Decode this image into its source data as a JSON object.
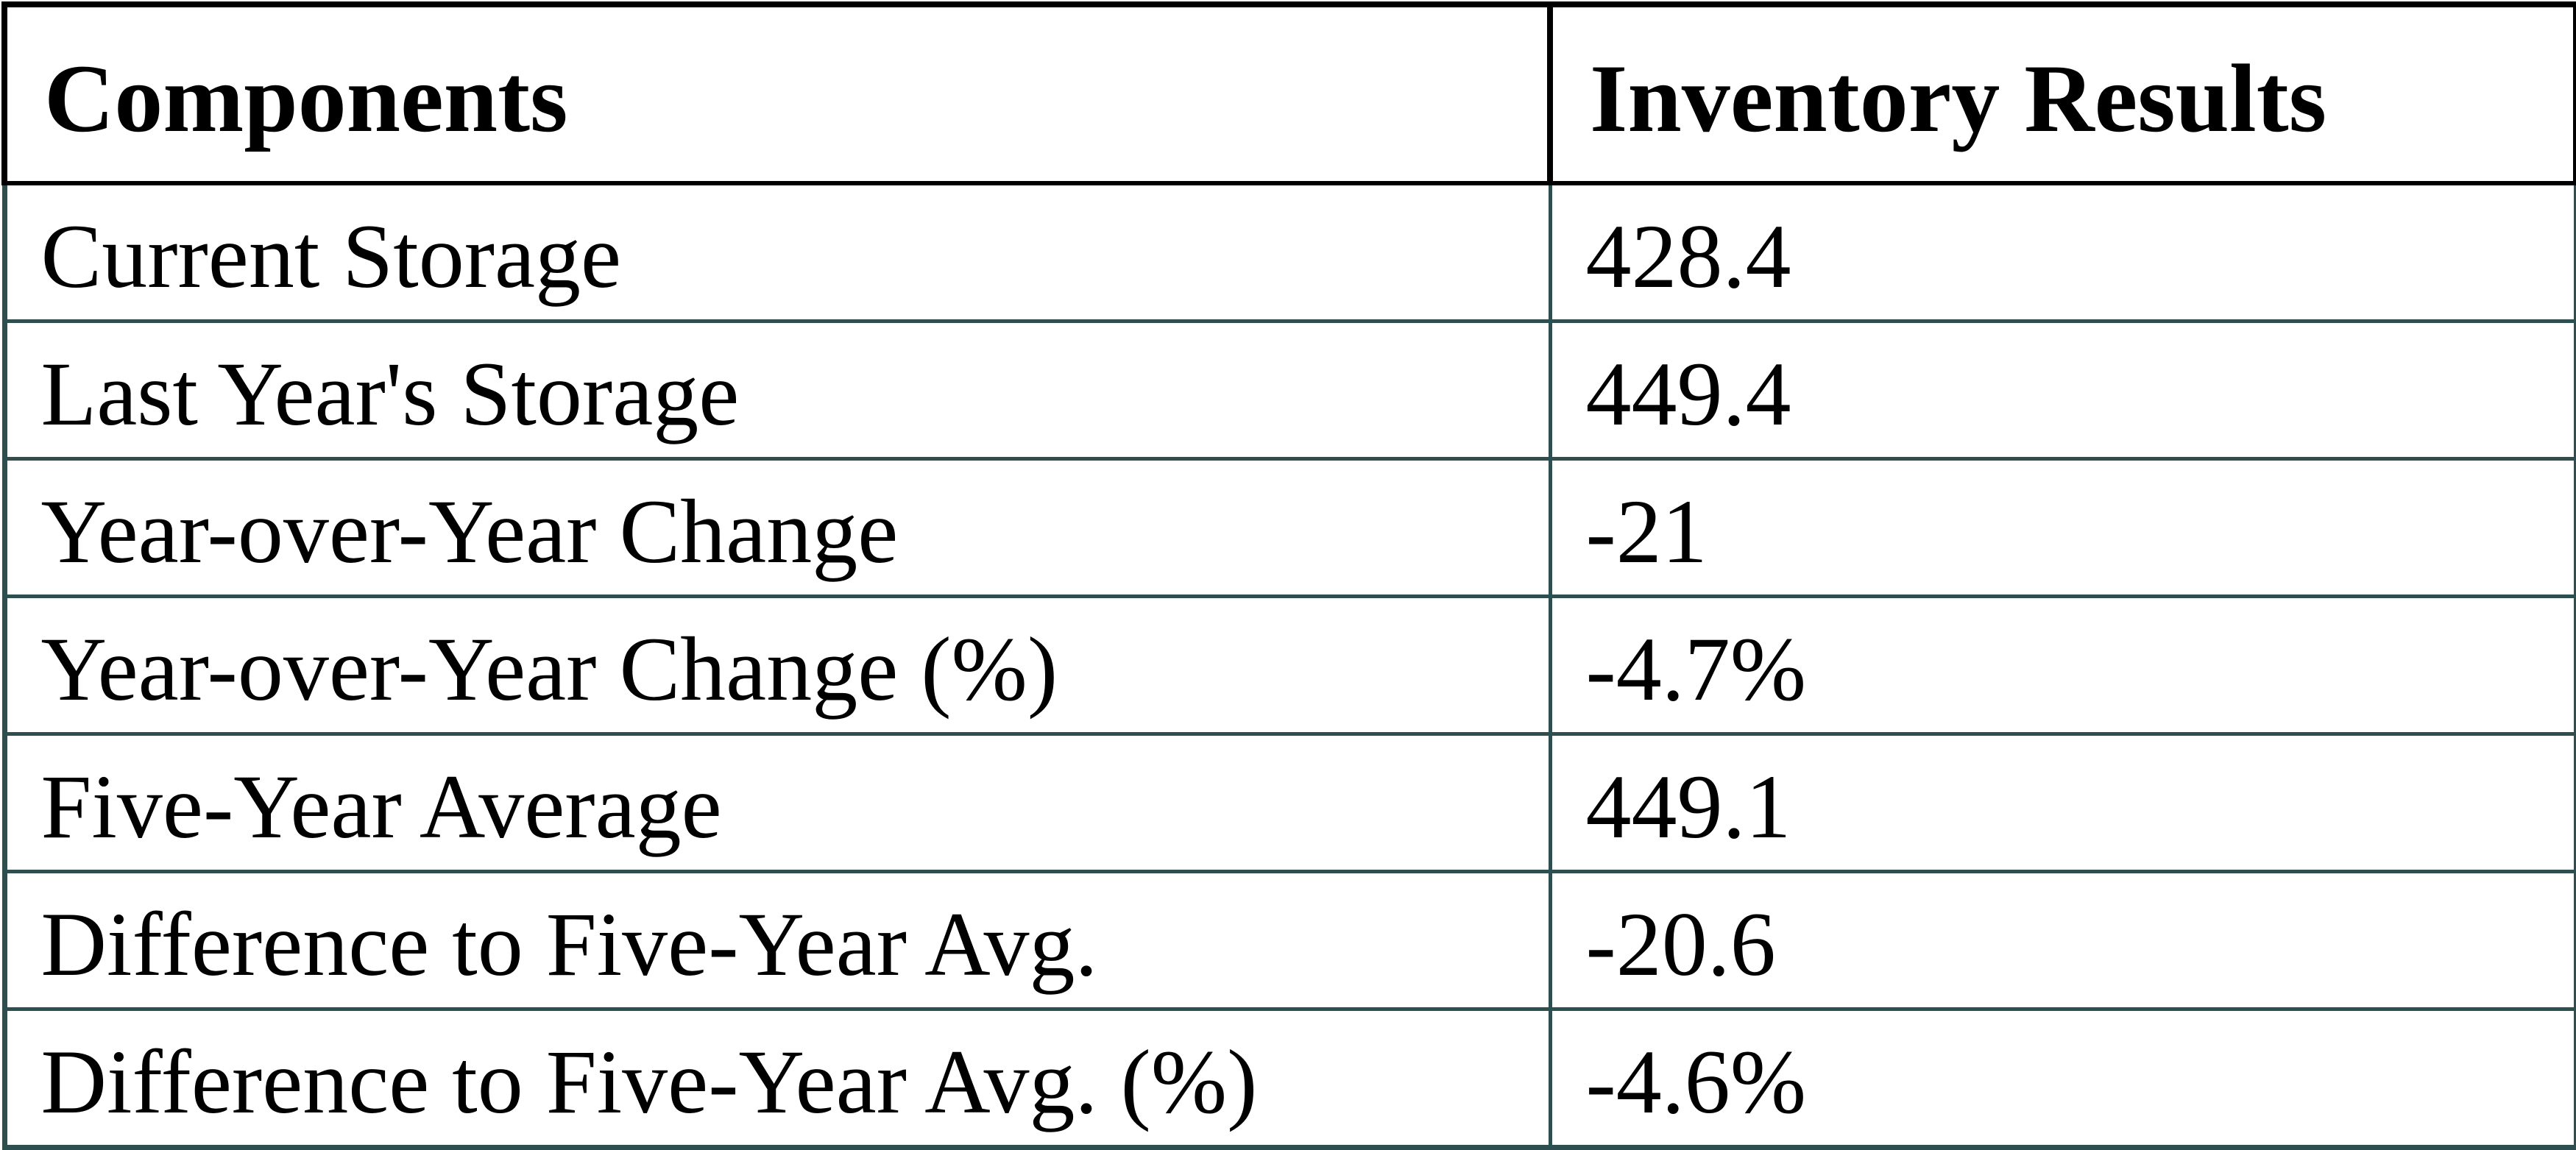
{
  "table": {
    "headers": {
      "components": "Components",
      "inventory_results": "Inventory Results"
    },
    "rows": [
      {
        "component": "Current Storage",
        "value": "428.4"
      },
      {
        "component": "Last Year's Storage",
        "value": "449.4"
      },
      {
        "component": "Year-over-Year Change",
        "value": "-21"
      },
      {
        "component": "Year-over-Year Change (%)",
        "value": "-4.7%"
      },
      {
        "component": "Five-Year Average",
        "value": "449.1"
      },
      {
        "component": "Difference to Five-Year Avg.",
        "value": "-20.6"
      },
      {
        "component": "Difference to Five-Year Avg. (%)",
        "value": "-4.6%"
      }
    ]
  },
  "colors": {
    "header_border": "#000000",
    "body_border": "#2e4f4f",
    "text": "#000000",
    "background": "#ffffff"
  },
  "chart_data": {
    "type": "table",
    "title": "Inventory Results",
    "columns": [
      "Components",
      "Inventory Results"
    ],
    "rows": [
      [
        "Current Storage",
        428.4
      ],
      [
        "Last Year's Storage",
        449.4
      ],
      [
        "Year-over-Year Change",
        -21
      ],
      [
        "Year-over-Year Change (%)",
        "-4.7%"
      ],
      [
        "Five-Year Average",
        449.1
      ],
      [
        "Difference to Five-Year Avg.",
        -20.6
      ],
      [
        "Difference to Five-Year Avg. (%)",
        "-4.6%"
      ]
    ],
    "legend_position": "none",
    "grid": true
  }
}
